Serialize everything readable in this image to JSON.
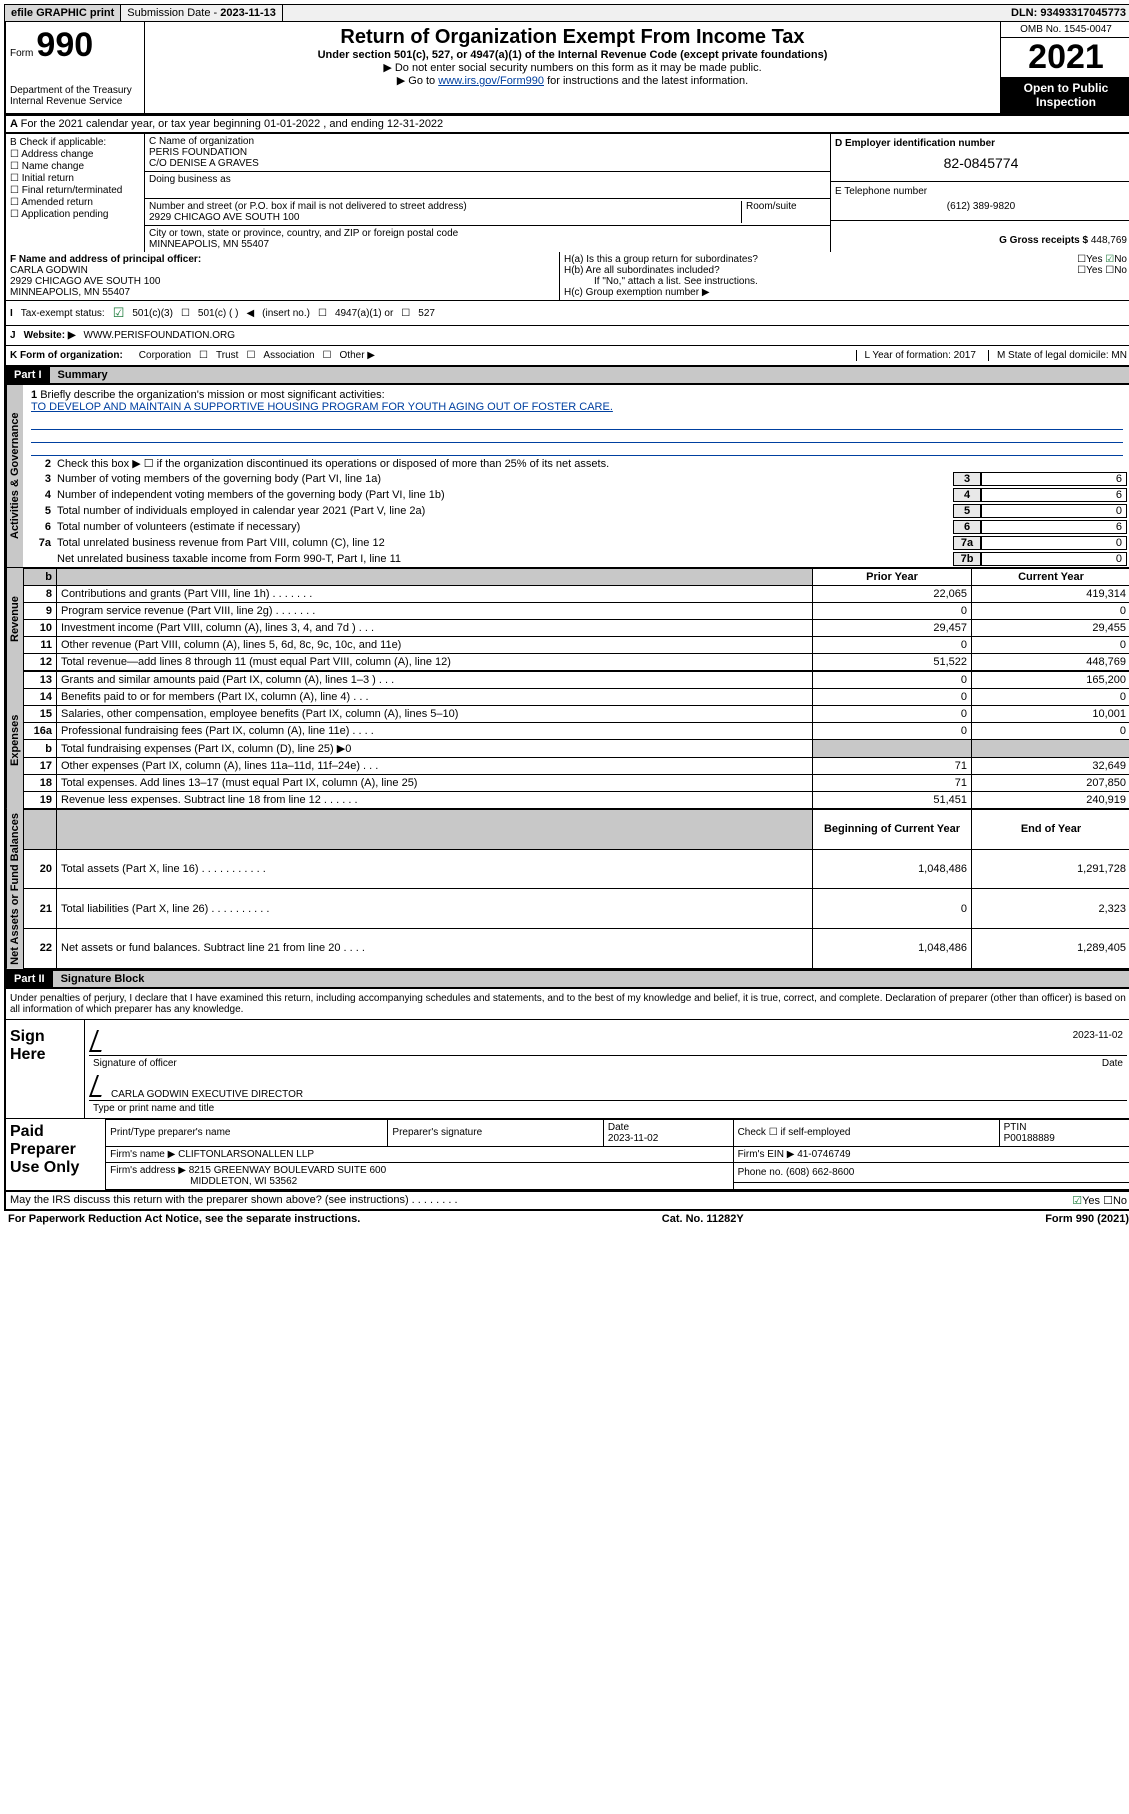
{
  "topbar": {
    "efile": "efile GRAPHIC print",
    "subdate_label": "Submission Date - ",
    "subdate": "2023-11-13",
    "dln_label": "DLN: ",
    "dln": "93493317045773"
  },
  "header": {
    "form_prefix": "Form",
    "form_num": "990",
    "title": "Return of Organization Exempt From Income Tax",
    "sub1": "Under section 501(c), 527, or 4947(a)(1) of the Internal Revenue Code (except private foundations)",
    "sub2": "Do not enter social security numbers on this form as it may be made public.",
    "sub3_pre": "Go to ",
    "sub3_link": "www.irs.gov/Form990",
    "sub3_post": " for instructions and the latest information.",
    "dept": "Department of the Treasury\nInternal Revenue Service",
    "omb": "OMB No. 1545-0047",
    "year": "2021",
    "open": "Open to Public Inspection"
  },
  "rowA": "For the 2021 calendar year, or tax year beginning 01-01-2022   , and ending 12-31-2022",
  "colB": {
    "title": "B Check if applicable:",
    "addr": "Address change",
    "name": "Name change",
    "init": "Initial return",
    "final": "Final return/terminated",
    "amend": "Amended return",
    "app": "Application pending"
  },
  "colC": {
    "c_label": "C Name of organization",
    "org1": "PERIS FOUNDATION",
    "org2": "C/O DENISE A GRAVES",
    "dba_label": "Doing business as",
    "addr_label": "Number and street (or P.O. box if mail is not delivered to street address)",
    "room_label": "Room/suite",
    "addr": "2929 CHICAGO AVE SOUTH 100",
    "city_label": "City or town, state or province, country, and ZIP or foreign postal code",
    "city": "MINNEAPOLIS, MN  55407"
  },
  "colDE": {
    "d_label": "D Employer identification number",
    "ein": "82-0845774",
    "e_label": "E Telephone number",
    "phone": "(612) 389-9820",
    "g_label": "G Gross receipts $ ",
    "gross": "448,769"
  },
  "rowF": {
    "f_label": "F  Name and address of principal officer:",
    "name": "CARLA GODWIN",
    "addr1": "2929 CHICAGO AVE SOUTH 100",
    "addr2": "MINNEAPOLIS, MN  55407",
    "ha": "H(a)  Is this a group return for subordinates?",
    "hb": "H(b)  Are all subordinates included?",
    "hnote": "If \"No,\" attach a list. See instructions.",
    "hc": "H(c)  Group exemption number ▶",
    "yes": "Yes",
    "no": "No"
  },
  "statusRow": {
    "i": "I",
    "label": "Tax-exempt status:",
    "c3": "501(c)(3)",
    "c": "501(c) (  )",
    "insert": "(insert no.)",
    "a1": "4947(a)(1) or",
    "s527": "527"
  },
  "websiteRow": {
    "j": "J",
    "label": "Website: ▶",
    "url": "WWW.PERISFOUNDATION.ORG"
  },
  "kRow": {
    "k": "K Form of organization:",
    "corp": "Corporation",
    "trust": "Trust",
    "assoc": "Association",
    "other": "Other ▶",
    "l": "L Year of formation: 2017",
    "m": "M State of legal domicile: MN"
  },
  "part1": {
    "part": "Part I",
    "title": "Summary"
  },
  "mission": {
    "n": "1",
    "label": "Briefly describe the organization's mission or most significant activities:",
    "text": "TO DEVELOP AND MAINTAIN A SUPPORTIVE HOUSING PROGRAM FOR YOUTH AGING OUT OF FOSTER CARE."
  },
  "gov_lines": [
    {
      "n": "2",
      "t": "Check this box ▶ ☐  if the organization discontinued its operations or disposed of more than 25% of its net assets."
    },
    {
      "n": "3",
      "t": "Number of voting members of the governing body (Part VI, line 1a)",
      "bn": "3",
      "bv": "6"
    },
    {
      "n": "4",
      "t": "Number of independent voting members of the governing body (Part VI, line 1b)",
      "bn": "4",
      "bv": "6"
    },
    {
      "n": "5",
      "t": "Total number of individuals employed in calendar year 2021 (Part V, line 2a)",
      "bn": "5",
      "bv": "0"
    },
    {
      "n": "6",
      "t": "Total number of volunteers (estimate if necessary)",
      "bn": "6",
      "bv": "6"
    },
    {
      "n": "7a",
      "t": "Total unrelated business revenue from Part VIII, column (C), line 12",
      "bn": "7a",
      "bv": "0"
    },
    {
      "n": "",
      "t": "Net unrelated business taxable income from Form 990-T, Part I, line 11",
      "bn": "7b",
      "bv": "0"
    }
  ],
  "fin_headers": {
    "b": "b",
    "py": "Prior Year",
    "cy": "Current Year",
    "bcy": "Beginning of Current Year",
    "eoy": "End of Year"
  },
  "revenue": [
    {
      "n": "8",
      "t": "Contributions and grants (Part VIII, line 1h)   .    .    .    .    .    .    .",
      "c1": "22,065",
      "c2": "419,314"
    },
    {
      "n": "9",
      "t": "Program service revenue (Part VIII, line 2g)   .    .    .    .    .    .    .",
      "c1": "0",
      "c2": "0"
    },
    {
      "n": "10",
      "t": "Investment income (Part VIII, column (A), lines 3, 4, and 7d )   .    .    .",
      "c1": "29,457",
      "c2": "29,455"
    },
    {
      "n": "11",
      "t": "Other revenue (Part VIII, column (A), lines 5, 6d, 8c, 9c, 10c, and 11e)",
      "c1": "0",
      "c2": "0"
    },
    {
      "n": "12",
      "t": "Total revenue—add lines 8 through 11 (must equal Part VIII, column (A), line 12)",
      "c1": "51,522",
      "c2": "448,769"
    }
  ],
  "expenses": [
    {
      "n": "13",
      "t": "Grants and similar amounts paid (Part IX, column (A), lines 1–3 )   .    .    .",
      "c1": "0",
      "c2": "165,200"
    },
    {
      "n": "14",
      "t": "Benefits paid to or for members (Part IX, column (A), line 4)   .    .    .",
      "c1": "0",
      "c2": "0"
    },
    {
      "n": "15",
      "t": "Salaries, other compensation, employee benefits (Part IX, column (A), lines 5–10)",
      "c1": "0",
      "c2": "10,001"
    },
    {
      "n": "16a",
      "t": "Professional fundraising fees (Part IX, column (A), line 11e)   .    .    .    .",
      "c1": "0",
      "c2": "0"
    },
    {
      "n": "b",
      "t": "Total fundraising expenses (Part IX, column (D), line 25) ▶0",
      "c1": "grey",
      "c2": "grey"
    },
    {
      "n": "17",
      "t": "Other expenses (Part IX, column (A), lines 11a–11d, 11f–24e)   .    .    .",
      "c1": "71",
      "c2": "32,649"
    },
    {
      "n": "18",
      "t": "Total expenses. Add lines 13–17 (must equal Part IX, column (A), line 25)",
      "c1": "71",
      "c2": "207,850"
    },
    {
      "n": "19",
      "t": "Revenue less expenses. Subtract line 18 from line 12   .    .    .    .    .    .",
      "c1": "51,451",
      "c2": "240,919"
    }
  ],
  "netassets": [
    {
      "n": "20",
      "t": "Total assets (Part X, line 16)   .    .    .    .    .    .    .    .    .    .    .",
      "c1": "1,048,486",
      "c2": "1,291,728"
    },
    {
      "n": "21",
      "t": "Total liabilities (Part X, line 26)   .    .    .    .    .    .    .    .    .    .",
      "c1": "0",
      "c2": "2,323"
    },
    {
      "n": "22",
      "t": "Net assets or fund balances. Subtract line 21 from line 20   .    .    .    .",
      "c1": "1,048,486",
      "c2": "1,289,405"
    }
  ],
  "part2": {
    "part": "Part II",
    "title": "Signature Block"
  },
  "sig": {
    "intro": "Under penalties of perjury, I declare that I have examined this return, including accompanying schedules and statements, and to the best of my knowledge and belief, it is true, correct, and complete. Declaration of preparer (other than officer) is based on all information of which preparer has any knowledge.",
    "sign_here": "Sign Here",
    "sig_officer": "Signature of officer",
    "date": "2023-11-02",
    "date_label": "Date",
    "name_title": "CARLA GODWIN  EXECUTIVE DIRECTOR",
    "type_label": "Type or print name and title"
  },
  "prep": {
    "title": "Paid Preparer Use Only",
    "print_label": "Print/Type preparer's name",
    "sig_label": "Preparer's signature",
    "date_label": "Date",
    "date": "2023-11-02",
    "check_label": "Check ☐ if self-employed",
    "ptin_label": "PTIN",
    "ptin": "P00188889",
    "firm_name_label": "Firm's name    ▶",
    "firm_name": "CLIFTONLARSONALLEN LLP",
    "firm_ein_label": "Firm's EIN ▶",
    "firm_ein": "41-0746749",
    "firm_addr_label": "Firm's address ▶",
    "firm_addr1": "8215 GREENWAY BOULEVARD SUITE 600",
    "firm_addr2": "MIDDLETON, WI  53562",
    "phone_label": "Phone no.",
    "phone": "(608) 662-8600"
  },
  "footer": {
    "discuss": "May the IRS discuss this return with the preparer shown above? (see instructions)   .    .    .    .    .    .    .    .",
    "yes": "Yes",
    "no": "No",
    "paperwork": "For Paperwork Reduction Act Notice, see the separate instructions.",
    "cat": "Cat. No. 11282Y",
    "form": "Form 990 (2021)"
  },
  "vlabels": {
    "gov": "Activities & Governance",
    "rev": "Revenue",
    "exp": "Expenses",
    "net": "Net Assets or Fund Balances"
  }
}
